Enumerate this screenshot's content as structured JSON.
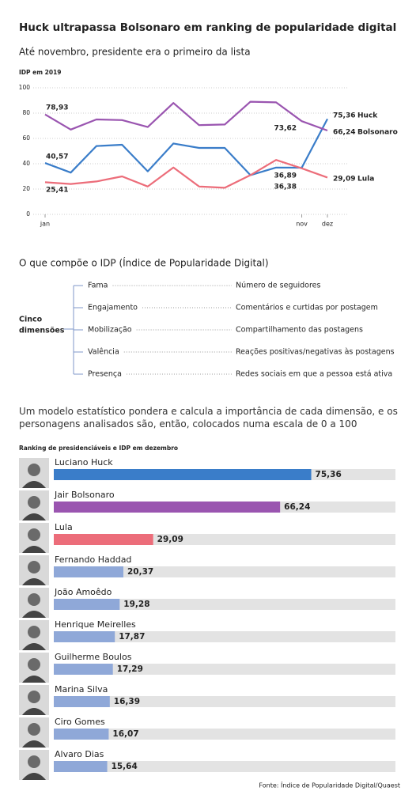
{
  "header": {
    "title": "Huck ultrapassa Bolsonaro em ranking de popularidade digital",
    "subtitle": "Até novembro, presidente era o primeiro da lista"
  },
  "chart_data": [
    {
      "type": "line",
      "title": "IDP em 2019",
      "categories": [
        "jan",
        null,
        null,
        null,
        null,
        null,
        null,
        null,
        null,
        null,
        "nov",
        "dez"
      ],
      "ylim": [
        0,
        100
      ],
      "yticks": [
        0,
        20,
        40,
        60,
        80,
        100
      ],
      "grid": true,
      "series": [
        {
          "name": "Huck",
          "color": "#3a7dc9",
          "values": [
            40.57,
            33,
            54,
            55,
            34,
            56,
            52.5,
            52.5,
            31,
            37,
            36.89,
            75.36
          ],
          "value_labels": [
            "40,57",
            null,
            null,
            null,
            null,
            null,
            null,
            null,
            null,
            null,
            "36,89",
            "75,36"
          ]
        },
        {
          "name": "Bolsonaro",
          "color": "#9a55b0",
          "values": [
            78.93,
            67,
            75,
            74.5,
            69,
            88,
            70.5,
            71,
            89,
            88.5,
            73.62,
            66.24
          ],
          "value_labels": [
            "78,93",
            null,
            null,
            null,
            null,
            null,
            null,
            null,
            null,
            null,
            "73,62",
            "66,24"
          ]
        },
        {
          "name": "Lula",
          "color": "#ec6d7a",
          "values": [
            25.41,
            24,
            26,
            30,
            22,
            37,
            22,
            21,
            31,
            43,
            36.38,
            29.09
          ],
          "value_labels": [
            "25,41",
            null,
            null,
            null,
            null,
            null,
            null,
            null,
            null,
            null,
            "36,38",
            "29,09"
          ]
        }
      ]
    },
    {
      "type": "bar",
      "title": "Ranking de presidenciáveis e IDP em dezembro",
      "categories": [
        "Luciano Huck",
        "Jair Bolsonaro",
        "Lula",
        "Fernando Haddad",
        "João Amoêdo",
        "Henrique Meirelles",
        "Guilherme Boulos",
        "Marina Silva",
        "Ciro Gomes",
        "Alvaro Dias"
      ],
      "values": [
        75.36,
        66.24,
        29.09,
        20.37,
        19.28,
        17.87,
        17.29,
        16.39,
        16.07,
        15.64
      ],
      "value_labels": [
        "75,36",
        "66,24",
        "29,09",
        "20,37",
        "19,28",
        "17,87",
        "17,29",
        "16,39",
        "16,07",
        "15,64"
      ],
      "colors": [
        "#3a7dc9",
        "#9a55b0",
        "#ec6d7a",
        "#8fa8d8",
        "#8fa8d8",
        "#8fa8d8",
        "#8fa8d8",
        "#8fa8d8",
        "#8fa8d8",
        "#8fa8d8"
      ],
      "xlim": [
        0,
        100
      ]
    }
  ],
  "diagram": {
    "title": "O que compõe o IDP (Índice de Popularidade Digital)",
    "root_lines": [
      "Cinco",
      "dimensões"
    ],
    "items": [
      {
        "name": "Fama",
        "description": "Número de seguidores"
      },
      {
        "name": "Engajamento",
        "description": "Comentários e curtidas por postagem"
      },
      {
        "name": "Mobilização",
        "description": "Compartilhamento das postagens"
      },
      {
        "name": "Valência",
        "description": "Reações positivas/negativas às postagens"
      },
      {
        "name": "Presença",
        "description": "Redes sociais em que a pessoa está ativa"
      }
    ],
    "note": "Um modelo estatístico pondera e calcula a importância de cada dimensão, e os personagens analisados são, então, colocados numa escala de 0 a 100"
  },
  "source": "Fonte: Índice de Popularidade Digital/Quaest"
}
